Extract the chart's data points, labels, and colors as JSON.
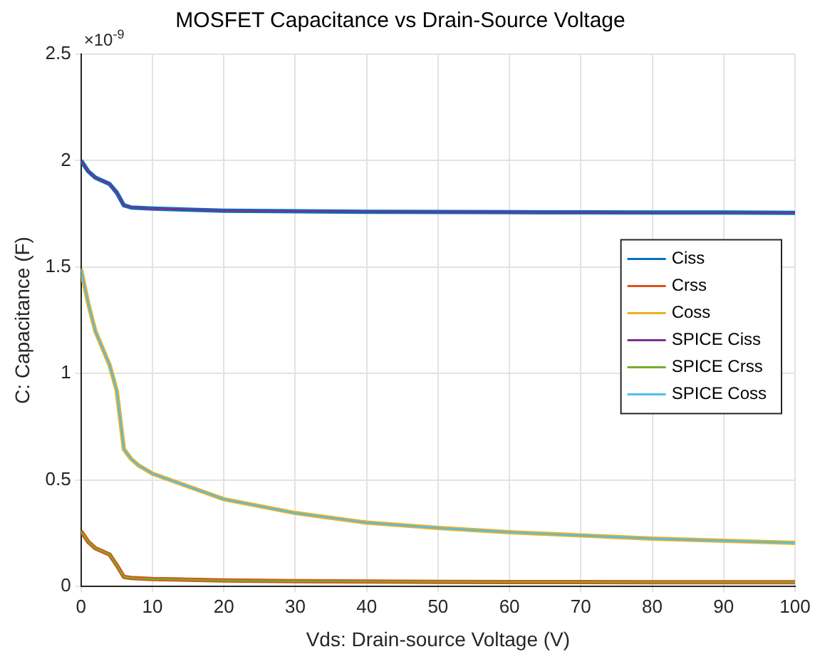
{
  "chart_data": {
    "type": "line",
    "title": "MOSFET Capacitance vs Drain-Source Voltage",
    "xlabel": "Vds: Drain-source Voltage (V)",
    "ylabel": "C: Capacitance (F)",
    "annotations": [
      "×10$^{-9}$"
    ],
    "x": [
      0,
      1,
      2,
      4,
      5,
      6,
      7,
      8,
      10,
      20,
      30,
      40,
      50,
      60,
      70,
      80,
      90,
      100
    ],
    "series": [
      {
        "name": "Ciss",
        "color": "#0072bd",
        "values": [
          2.0,
          1.95,
          1.92,
          1.89,
          1.85,
          1.79,
          1.78,
          1.778,
          1.775,
          1.765,
          1.762,
          1.76,
          1.759,
          1.758,
          1.757,
          1.756,
          1.756,
          1.755
        ]
      },
      {
        "name": "Crss",
        "color": "#d95319",
        "values": [
          0.26,
          0.21,
          0.18,
          0.15,
          0.1,
          0.045,
          0.04,
          0.038,
          0.035,
          0.028,
          0.025,
          0.023,
          0.022,
          0.021,
          0.021,
          0.02,
          0.02,
          0.02
        ]
      },
      {
        "name": "Coss",
        "color": "#edb120",
        "values": [
          1.49,
          1.33,
          1.2,
          1.04,
          0.92,
          0.645,
          0.6,
          0.57,
          0.53,
          0.41,
          0.345,
          0.3,
          0.275,
          0.255,
          0.24,
          0.225,
          0.215,
          0.205
        ]
      },
      {
        "name": "SPICE Ciss",
        "color": "#7e2f8e",
        "values": [
          2.0,
          1.95,
          1.92,
          1.89,
          1.85,
          1.79,
          1.78,
          1.778,
          1.775,
          1.765,
          1.762,
          1.76,
          1.759,
          1.758,
          1.757,
          1.756,
          1.756,
          1.755
        ]
      },
      {
        "name": "SPICE Crss",
        "color": "#77ac30",
        "values": [
          0.26,
          0.21,
          0.18,
          0.15,
          0.1,
          0.045,
          0.04,
          0.038,
          0.035,
          0.028,
          0.025,
          0.023,
          0.022,
          0.021,
          0.021,
          0.02,
          0.02,
          0.02
        ]
      },
      {
        "name": "SPICE Coss",
        "color": "#4dbeee",
        "values": [
          1.49,
          1.33,
          1.2,
          1.04,
          0.92,
          0.645,
          0.6,
          0.57,
          0.53,
          0.41,
          0.345,
          0.3,
          0.275,
          0.255,
          0.24,
          0.225,
          0.215,
          0.205
        ]
      }
    ],
    "xlim": [
      0,
      100
    ],
    "xticks": [
      0,
      10,
      20,
      30,
      40,
      50,
      60,
      70,
      80,
      90,
      100
    ],
    "ylim": [
      0,
      2.5
    ],
    "yticks": [
      0,
      0.5,
      1,
      1.5,
      2,
      2.5
    ],
    "grid": true,
    "legend": "right",
    "marker": "none",
    "line_style": "solid"
  }
}
